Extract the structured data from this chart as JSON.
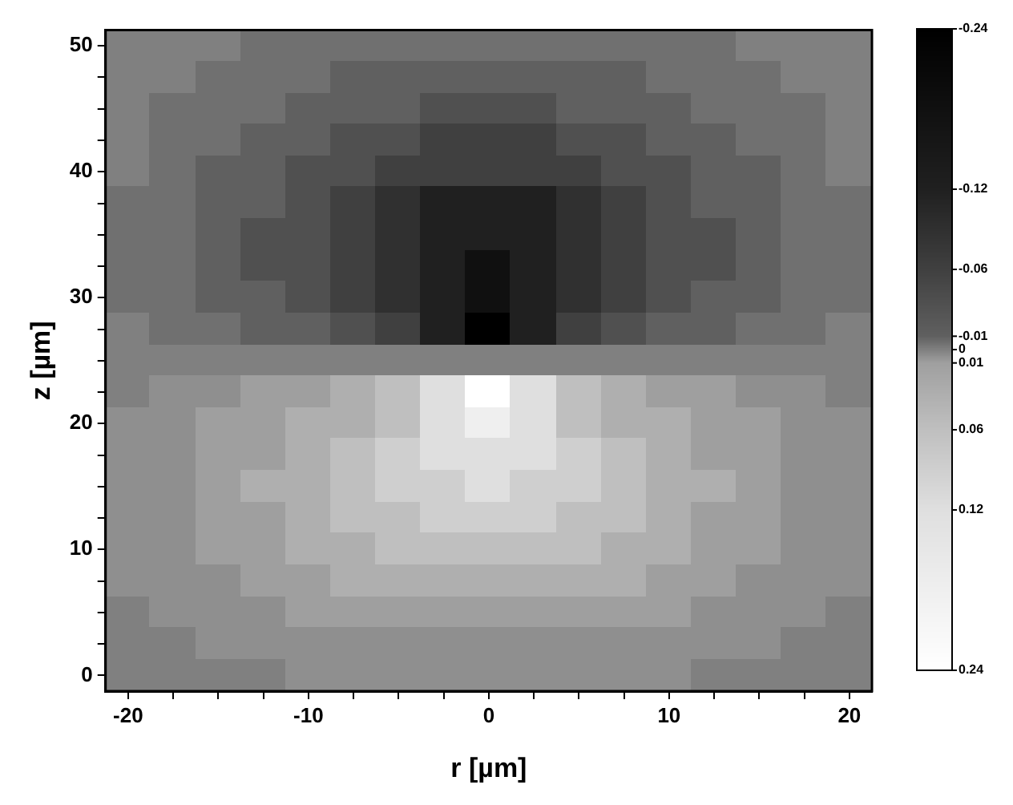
{
  "chart_data": {
    "type": "heatmap",
    "xlabel": "r [µm]",
    "ylabel": "z [µm]",
    "categories": [
      "-20",
      null,
      null,
      null,
      "-10",
      null,
      null,
      null,
      "0",
      null,
      null,
      null,
      "10",
      null,
      null,
      null,
      "20"
    ],
    "y_categories": [
      "50",
      null,
      null,
      null,
      "40",
      null,
      null,
      null,
      "30",
      null,
      null,
      null,
      "20",
      null,
      null,
      null,
      "10",
      null,
      null,
      null,
      "0"
    ],
    "clim": [
      -0.24,
      0.24
    ],
    "cticks": [
      -0.24,
      -0.12,
      -0.06,
      -0.01,
      0,
      0.01,
      0.06,
      0.12,
      0.24
    ],
    "cells": [
      [
        0,
        0,
        0,
        -0.005,
        -0.005,
        -0.005,
        -0.005,
        -0.005,
        -0.005,
        -0.005,
        -0.005,
        -0.005,
        -0.005,
        -0.005,
        0,
        0,
        0
      ],
      [
        0,
        0,
        -0.005,
        -0.005,
        -0.005,
        -0.01,
        -0.01,
        -0.01,
        -0.01,
        -0.01,
        -0.01,
        -0.01,
        -0.005,
        -0.005,
        -0.005,
        0,
        0
      ],
      [
        0,
        -0.005,
        -0.005,
        -0.005,
        -0.01,
        -0.01,
        -0.01,
        -0.035,
        -0.035,
        -0.035,
        -0.01,
        -0.01,
        -0.01,
        -0.005,
        -0.005,
        -0.005,
        0
      ],
      [
        0,
        -0.005,
        -0.005,
        -0.01,
        -0.01,
        -0.035,
        -0.035,
        -0.06,
        -0.06,
        -0.06,
        -0.035,
        -0.035,
        -0.01,
        -0.01,
        -0.005,
        -0.005,
        0
      ],
      [
        0,
        -0.005,
        -0.01,
        -0.01,
        -0.035,
        -0.035,
        -0.06,
        -0.06,
        -0.06,
        -0.06,
        -0.06,
        -0.035,
        -0.035,
        -0.01,
        -0.01,
        -0.005,
        0
      ],
      [
        -0.005,
        -0.005,
        -0.01,
        -0.01,
        -0.035,
        -0.06,
        -0.09,
        -0.12,
        -0.12,
        -0.12,
        -0.09,
        -0.06,
        -0.035,
        -0.01,
        -0.01,
        -0.005,
        -0.005
      ],
      [
        -0.005,
        -0.005,
        -0.01,
        -0.035,
        -0.035,
        -0.06,
        -0.09,
        -0.12,
        -0.12,
        -0.12,
        -0.09,
        -0.06,
        -0.035,
        -0.035,
        -0.01,
        -0.005,
        -0.005
      ],
      [
        -0.005,
        -0.005,
        -0.01,
        -0.035,
        -0.035,
        -0.06,
        -0.09,
        -0.12,
        -0.18,
        -0.12,
        -0.09,
        -0.06,
        -0.035,
        -0.035,
        -0.01,
        -0.005,
        -0.005
      ],
      [
        -0.005,
        -0.005,
        -0.01,
        -0.01,
        -0.035,
        -0.06,
        -0.09,
        -0.12,
        -0.18,
        -0.12,
        -0.09,
        -0.06,
        -0.035,
        -0.01,
        -0.01,
        -0.005,
        -0.005
      ],
      [
        0,
        -0.005,
        -0.005,
        -0.01,
        -0.01,
        -0.035,
        -0.06,
        -0.12,
        -0.24,
        -0.12,
        -0.06,
        -0.035,
        -0.01,
        -0.01,
        -0.005,
        -0.005,
        0
      ],
      [
        0,
        0,
        0,
        0,
        0,
        0,
        0,
        0,
        0,
        0,
        0,
        0,
        0,
        0,
        0,
        0,
        0
      ],
      [
        0,
        0.005,
        0.005,
        0.01,
        0.01,
        0.035,
        0.06,
        0.12,
        0.24,
        0.12,
        0.06,
        0.035,
        0.01,
        0.01,
        0.005,
        0.005,
        0
      ],
      [
        0.005,
        0.005,
        0.01,
        0.01,
        0.035,
        0.035,
        0.06,
        0.12,
        0.18,
        0.12,
        0.06,
        0.035,
        0.035,
        0.01,
        0.01,
        0.005,
        0.005
      ],
      [
        0.005,
        0.005,
        0.01,
        0.01,
        0.035,
        0.06,
        0.09,
        0.12,
        0.12,
        0.12,
        0.09,
        0.06,
        0.035,
        0.01,
        0.01,
        0.005,
        0.005
      ],
      [
        0.005,
        0.005,
        0.01,
        0.035,
        0.035,
        0.06,
        0.09,
        0.09,
        0.12,
        0.09,
        0.09,
        0.06,
        0.035,
        0.035,
        0.01,
        0.005,
        0.005
      ],
      [
        0.005,
        0.005,
        0.01,
        0.01,
        0.035,
        0.06,
        0.06,
        0.09,
        0.09,
        0.09,
        0.06,
        0.06,
        0.035,
        0.01,
        0.01,
        0.005,
        0.005
      ],
      [
        0.005,
        0.005,
        0.01,
        0.01,
        0.035,
        0.035,
        0.06,
        0.06,
        0.06,
        0.06,
        0.06,
        0.035,
        0.035,
        0.01,
        0.01,
        0.005,
        0.005
      ],
      [
        0.005,
        0.005,
        0.005,
        0.01,
        0.01,
        0.035,
        0.035,
        0.035,
        0.035,
        0.035,
        0.035,
        0.035,
        0.01,
        0.01,
        0.005,
        0.005,
        0.005
      ],
      [
        0,
        0.005,
        0.005,
        0.005,
        0.01,
        0.01,
        0.01,
        0.01,
        0.01,
        0.01,
        0.01,
        0.01,
        0.01,
        0.005,
        0.005,
        0.005,
        0
      ],
      [
        0,
        0,
        0.005,
        0.005,
        0.005,
        0.005,
        0.005,
        0.005,
        0.005,
        0.005,
        0.005,
        0.005,
        0.005,
        0.005,
        0.005,
        0,
        0
      ],
      [
        0,
        0,
        0,
        0,
        0.005,
        0.005,
        0.005,
        0.005,
        0.005,
        0.005,
        0.005,
        0.005,
        0.005,
        0,
        0,
        0,
        0
      ]
    ]
  }
}
